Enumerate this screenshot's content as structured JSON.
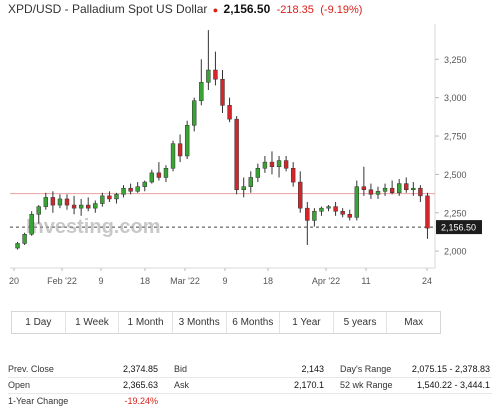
{
  "header": {
    "title": "XPD/USD - Palladium Spot US Dollar",
    "price": "2,156.50",
    "change": "-218.35",
    "change_pct": "(-9.19%)"
  },
  "watermark": "Investing.com",
  "chart_data": {
    "type": "candlestick",
    "x_tick_labels": [
      "20",
      "Feb '22",
      "9",
      "18",
      "Mar '22",
      "9",
      "18",
      "Apr '22",
      "11",
      "24"
    ],
    "y_tick_labels": [
      "3,250",
      "3,000",
      "2,750",
      "2,500",
      "2,250",
      "2,000"
    ],
    "ylim": [
      1890,
      3480
    ],
    "current_price": 2156.5,
    "current_price_label": "2,156.50",
    "reference_line": 2375,
    "colors": {
      "up": "#3aa335",
      "down": "#d3262b",
      "ref_line": "#e8a0a0",
      "price_tag": "#1d1d1d"
    },
    "candles": [
      {
        "o": 2020,
        "h": 2060,
        "l": 2010,
        "c": 2050
      },
      {
        "o": 2050,
        "h": 2120,
        "l": 2040,
        "c": 2110
      },
      {
        "o": 2110,
        "h": 2260,
        "l": 2100,
        "c": 2240
      },
      {
        "o": 2240,
        "h": 2300,
        "l": 2180,
        "c": 2290
      },
      {
        "o": 2290,
        "h": 2380,
        "l": 2270,
        "c": 2350
      },
      {
        "o": 2350,
        "h": 2390,
        "l": 2250,
        "c": 2300
      },
      {
        "o": 2300,
        "h": 2370,
        "l": 2280,
        "c": 2340
      },
      {
        "o": 2340,
        "h": 2370,
        "l": 2270,
        "c": 2300
      },
      {
        "o": 2300,
        "h": 2360,
        "l": 2240,
        "c": 2280
      },
      {
        "o": 2280,
        "h": 2340,
        "l": 2230,
        "c": 2300
      },
      {
        "o": 2300,
        "h": 2350,
        "l": 2260,
        "c": 2280
      },
      {
        "o": 2280,
        "h": 2330,
        "l": 2250,
        "c": 2310
      },
      {
        "o": 2310,
        "h": 2380,
        "l": 2290,
        "c": 2360
      },
      {
        "o": 2360,
        "h": 2390,
        "l": 2320,
        "c": 2340
      },
      {
        "o": 2340,
        "h": 2380,
        "l": 2310,
        "c": 2370
      },
      {
        "o": 2370,
        "h": 2430,
        "l": 2350,
        "c": 2410
      },
      {
        "o": 2410,
        "h": 2440,
        "l": 2370,
        "c": 2390
      },
      {
        "o": 2390,
        "h": 2450,
        "l": 2380,
        "c": 2420
      },
      {
        "o": 2420,
        "h": 2460,
        "l": 2390,
        "c": 2450
      },
      {
        "o": 2450,
        "h": 2530,
        "l": 2440,
        "c": 2510
      },
      {
        "o": 2510,
        "h": 2580,
        "l": 2460,
        "c": 2480
      },
      {
        "o": 2480,
        "h": 2560,
        "l": 2450,
        "c": 2540
      },
      {
        "o": 2540,
        "h": 2720,
        "l": 2520,
        "c": 2700
      },
      {
        "o": 2700,
        "h": 2760,
        "l": 2580,
        "c": 2620
      },
      {
        "o": 2620,
        "h": 2850,
        "l": 2600,
        "c": 2820
      },
      {
        "o": 2820,
        "h": 3000,
        "l": 2780,
        "c": 2980
      },
      {
        "o": 2980,
        "h": 3250,
        "l": 2950,
        "c": 3100
      },
      {
        "o": 3100,
        "h": 3440,
        "l": 3050,
        "c": 3180
      },
      {
        "o": 3180,
        "h": 3300,
        "l": 3080,
        "c": 3120
      },
      {
        "o": 3120,
        "h": 3180,
        "l": 2900,
        "c": 2950
      },
      {
        "o": 2950,
        "h": 3000,
        "l": 2840,
        "c": 2860
      },
      {
        "o": 2860,
        "h": 2880,
        "l": 2370,
        "c": 2400
      },
      {
        "o": 2400,
        "h": 2480,
        "l": 2350,
        "c": 2420
      },
      {
        "o": 2420,
        "h": 2520,
        "l": 2380,
        "c": 2480
      },
      {
        "o": 2480,
        "h": 2570,
        "l": 2450,
        "c": 2540
      },
      {
        "o": 2540,
        "h": 2620,
        "l": 2510,
        "c": 2580
      },
      {
        "o": 2580,
        "h": 2650,
        "l": 2500,
        "c": 2550
      },
      {
        "o": 2550,
        "h": 2620,
        "l": 2480,
        "c": 2590
      },
      {
        "o": 2590,
        "h": 2620,
        "l": 2520,
        "c": 2540
      },
      {
        "o": 2540,
        "h": 2580,
        "l": 2420,
        "c": 2450
      },
      {
        "o": 2450,
        "h": 2520,
        "l": 2250,
        "c": 2280
      },
      {
        "o": 2280,
        "h": 2320,
        "l": 2040,
        "c": 2200
      },
      {
        "o": 2200,
        "h": 2280,
        "l": 2160,
        "c": 2260
      },
      {
        "o": 2260,
        "h": 2290,
        "l": 2230,
        "c": 2280
      },
      {
        "o": 2280,
        "h": 2300,
        "l": 2260,
        "c": 2290
      },
      {
        "o": 2290,
        "h": 2320,
        "l": 2230,
        "c": 2260
      },
      {
        "o": 2260,
        "h": 2280,
        "l": 2220,
        "c": 2240
      },
      {
        "o": 2240,
        "h": 2270,
        "l": 2200,
        "c": 2220
      },
      {
        "o": 2220,
        "h": 2460,
        "l": 2200,
        "c": 2420
      },
      {
        "o": 2420,
        "h": 2550,
        "l": 2360,
        "c": 2400
      },
      {
        "o": 2400,
        "h": 2440,
        "l": 2340,
        "c": 2370
      },
      {
        "o": 2370,
        "h": 2420,
        "l": 2340,
        "c": 2390
      },
      {
        "o": 2390,
        "h": 2440,
        "l": 2360,
        "c": 2410
      },
      {
        "o": 2410,
        "h": 2460,
        "l": 2370,
        "c": 2380
      },
      {
        "o": 2380,
        "h": 2470,
        "l": 2360,
        "c": 2440
      },
      {
        "o": 2440,
        "h": 2480,
        "l": 2380,
        "c": 2400
      },
      {
        "o": 2400,
        "h": 2450,
        "l": 2360,
        "c": 2410
      },
      {
        "o": 2410,
        "h": 2430,
        "l": 2320,
        "c": 2360
      },
      {
        "o": 2360,
        "h": 2380,
        "l": 2080,
        "c": 2150
      }
    ]
  },
  "ranges": [
    "1 Day",
    "1 Week",
    "1 Month",
    "3 Months",
    "6 Months",
    "1 Year",
    "5 years",
    "Max"
  ],
  "stats": {
    "prev_close": {
      "label": "Prev. Close",
      "value": "2,374.85"
    },
    "open": {
      "label": "Open",
      "value": "2,365.63"
    },
    "one_year_change": {
      "label": "1-Year Change",
      "value": "-19.24%"
    },
    "bid": {
      "label": "Bid",
      "value": "2,143"
    },
    "ask": {
      "label": "Ask",
      "value": "2,170.1"
    },
    "days_range": {
      "label": "Day's Range",
      "value": "2,075.15 - 2,378.83"
    },
    "wk52_range": {
      "label": "52 wk Range",
      "value": "1,540.22 - 3,444.1"
    }
  }
}
